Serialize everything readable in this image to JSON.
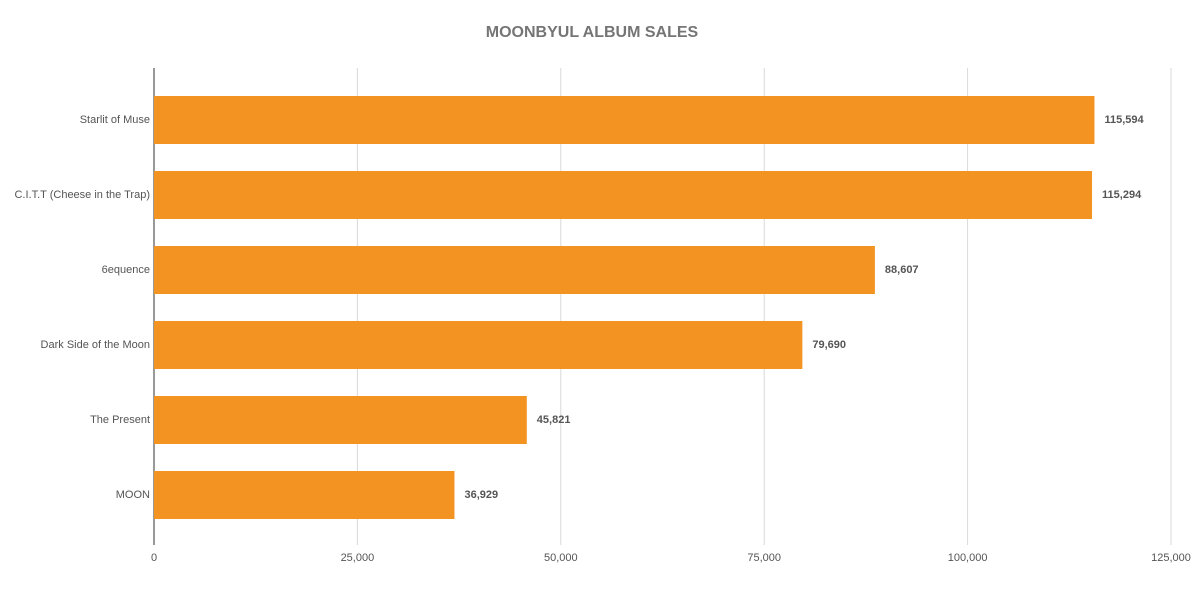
{
  "chart_data": {
    "type": "bar",
    "orientation": "horizontal",
    "title": "MOONBYUL ALBUM SALES",
    "categories": [
      "Starlit of Muse",
      "C.I.T.T (Cheese in the Trap)",
      "6equence",
      "Dark Side of the Moon",
      "The Present",
      "MOON"
    ],
    "values": [
      115594,
      115294,
      88607,
      79690,
      45821,
      36929
    ],
    "value_labels": [
      "115,594",
      "115,294",
      "88,607",
      "79,690",
      "45,821",
      "36,929"
    ],
    "color": "#f39422",
    "xlim": [
      0,
      125000
    ],
    "xticks": [
      0,
      {
        "value": 25000,
        "label": "25,000"
      },
      {
        "value": 50000,
        "label": "50,000"
      },
      {
        "value": 75000,
        "label": "75,000"
      },
      {
        "value": 100000,
        "label": "100,000"
      },
      {
        "value": 125000,
        "label": "125,000"
      }
    ],
    "grid": true
  }
}
